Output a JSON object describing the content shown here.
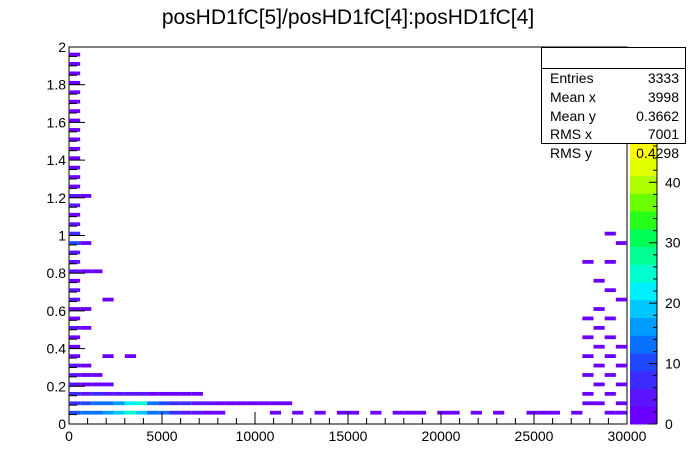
{
  "chart_data": {
    "type": "heatmap",
    "title": "posHD1fC[5]/posHD1fC[4]:posHD1fC[4]",
    "xlabel": "",
    "ylabel": "",
    "xlim": [
      0,
      30000
    ],
    "ylim": [
      0,
      2
    ],
    "x_ticks": [
      "0",
      "5000",
      "10000",
      "15000",
      "20000",
      "25000",
      "30000"
    ],
    "y_ticks": [
      "0",
      "0.2",
      "0.4",
      "0.6",
      "0.8",
      "1",
      "1.2",
      "1.4",
      "1.6",
      "1.8",
      "2"
    ],
    "z_ticks": [
      "0",
      "10",
      "20",
      "30",
      "40"
    ],
    "zlim": [
      0,
      47
    ],
    "bin_width_x": 600,
    "bin_width_y": 0.02,
    "stats": [
      {
        "label": "Entries",
        "value": "3333"
      },
      {
        "label": "Mean x",
        "value": "3998"
      },
      {
        "label": "Mean y",
        "value": "0.3662"
      },
      {
        "label": "RMS x",
        "value": "7001"
      },
      {
        "label": "RMS y",
        "value": "0.4298"
      }
    ],
    "palette": [
      "#6a00ff",
      "#5a14ff",
      "#3c2cff",
      "#1f48ff",
      "#0a70ff",
      "#009bff",
      "#00c8ff",
      "#00f0ff",
      "#00ffcf",
      "#00ff94",
      "#00ff55",
      "#25ff1a",
      "#6cff00",
      "#b0ff00",
      "#e4ff00",
      "#ffff00"
    ],
    "cells": [
      [
        0,
        1.95,
        1
      ],
      [
        0,
        1.9,
        1
      ],
      [
        0,
        1.85,
        1
      ],
      [
        0,
        1.8,
        2
      ],
      [
        0,
        1.75,
        1
      ],
      [
        0,
        1.7,
        1
      ],
      [
        0,
        1.65,
        2
      ],
      [
        0,
        1.6,
        1
      ],
      [
        0,
        1.55,
        1
      ],
      [
        0,
        1.5,
        2
      ],
      [
        0,
        1.45,
        1
      ],
      [
        0,
        1.4,
        2
      ],
      [
        0,
        1.35,
        1
      ],
      [
        0,
        1.3,
        1
      ],
      [
        0,
        1.25,
        2
      ],
      [
        0,
        1.2,
        3
      ],
      [
        0,
        1.15,
        4
      ],
      [
        0,
        1.1,
        2
      ],
      [
        0,
        1.05,
        3
      ],
      [
        0,
        1.0,
        6
      ],
      [
        0,
        0.95,
        9
      ],
      [
        0,
        0.9,
        5
      ],
      [
        0,
        0.85,
        3
      ],
      [
        0,
        0.8,
        4
      ],
      [
        0,
        0.75,
        2
      ],
      [
        0,
        0.7,
        3
      ],
      [
        0,
        0.65,
        5
      ],
      [
        0,
        0.6,
        2
      ],
      [
        0,
        0.55,
        1
      ],
      [
        0,
        0.5,
        3
      ],
      [
        0,
        0.45,
        2
      ],
      [
        0,
        0.4,
        2
      ],
      [
        0,
        0.35,
        1
      ],
      [
        0,
        0.3,
        3
      ],
      [
        0,
        0.25,
        4
      ],
      [
        0,
        0.2,
        3
      ],
      [
        0,
        0.15,
        6
      ],
      [
        0,
        0.1,
        8
      ],
      [
        0,
        0.05,
        10
      ],
      [
        600,
        1.2,
        1
      ],
      [
        600,
        0.95,
        1
      ],
      [
        600,
        0.8,
        1
      ],
      [
        600,
        0.6,
        1
      ],
      [
        600,
        0.5,
        1
      ],
      [
        600,
        0.3,
        1
      ],
      [
        600,
        0.25,
        2
      ],
      [
        600,
        0.2,
        2
      ],
      [
        600,
        0.15,
        5
      ],
      [
        600,
        0.1,
        9
      ],
      [
        600,
        0.05,
        12
      ],
      [
        1200,
        0.8,
        1
      ],
      [
        1200,
        0.25,
        1
      ],
      [
        1200,
        0.2,
        2
      ],
      [
        1200,
        0.15,
        6
      ],
      [
        1200,
        0.1,
        12
      ],
      [
        1200,
        0.05,
        14
      ],
      [
        1800,
        0.65,
        1
      ],
      [
        1800,
        0.35,
        1
      ],
      [
        1800,
        0.2,
        1
      ],
      [
        1800,
        0.15,
        4
      ],
      [
        1800,
        0.1,
        13
      ],
      [
        1800,
        0.05,
        16
      ],
      [
        2400,
        0.15,
        5
      ],
      [
        2400,
        0.1,
        15
      ],
      [
        2400,
        0.05,
        18
      ],
      [
        3000,
        0.35,
        1
      ],
      [
        3000,
        0.15,
        4
      ],
      [
        3000,
        0.1,
        22
      ],
      [
        3000,
        0.05,
        26
      ],
      [
        3600,
        0.15,
        3
      ],
      [
        3600,
        0.1,
        24
      ],
      [
        3600,
        0.05,
        20
      ],
      [
        4200,
        0.15,
        2
      ],
      [
        4200,
        0.1,
        14
      ],
      [
        4200,
        0.05,
        12
      ],
      [
        4800,
        0.15,
        2
      ],
      [
        4800,
        0.1,
        10
      ],
      [
        4800,
        0.05,
        13
      ],
      [
        5400,
        0.15,
        2
      ],
      [
        5400,
        0.1,
        8
      ],
      [
        5400,
        0.05,
        6
      ],
      [
        6000,
        0.15,
        1
      ],
      [
        6000,
        0.1,
        6
      ],
      [
        6000,
        0.05,
        5
      ],
      [
        6600,
        0.15,
        1
      ],
      [
        6600,
        0.1,
        4
      ],
      [
        6600,
        0.05,
        3
      ],
      [
        7200,
        0.1,
        3
      ],
      [
        7200,
        0.05,
        2
      ],
      [
        7800,
        0.1,
        2
      ],
      [
        7800,
        0.05,
        2
      ],
      [
        8400,
        0.1,
        2
      ],
      [
        9000,
        0.1,
        1
      ],
      [
        9600,
        0.1,
        1
      ],
      [
        10200,
        0.1,
        2
      ],
      [
        10800,
        0.1,
        1
      ],
      [
        11400,
        0.1,
        1
      ],
      [
        10800,
        0.05,
        1
      ],
      [
        12000,
        0.05,
        1
      ],
      [
        13200,
        0.05,
        1
      ],
      [
        14400,
        0.05,
        1
      ],
      [
        15000,
        0.05,
        1
      ],
      [
        16200,
        0.05,
        1
      ],
      [
        17400,
        0.05,
        1
      ],
      [
        18000,
        0.05,
        1
      ],
      [
        18600,
        0.05,
        1
      ],
      [
        19800,
        0.05,
        1
      ],
      [
        20400,
        0.05,
        1
      ],
      [
        21600,
        0.05,
        1
      ],
      [
        22800,
        0.05,
        1
      ],
      [
        24600,
        0.05,
        1
      ],
      [
        25200,
        0.05,
        1
      ],
      [
        25800,
        0.05,
        1
      ],
      [
        27000,
        0.05,
        1
      ],
      [
        27600,
        0.85,
        1
      ],
      [
        27600,
        0.55,
        1
      ],
      [
        27600,
        0.45,
        1
      ],
      [
        27600,
        0.35,
        1
      ],
      [
        27600,
        0.25,
        1
      ],
      [
        27600,
        0.15,
        1
      ],
      [
        27600,
        0.1,
        1
      ],
      [
        28200,
        0.75,
        1
      ],
      [
        28200,
        0.6,
        1
      ],
      [
        28200,
        0.5,
        1
      ],
      [
        28200,
        0.4,
        1
      ],
      [
        28200,
        0.3,
        1
      ],
      [
        28200,
        0.2,
        1
      ],
      [
        28200,
        0.1,
        1
      ],
      [
        28800,
        1.0,
        1
      ],
      [
        28800,
        0.85,
        1
      ],
      [
        28800,
        0.7,
        1
      ],
      [
        28800,
        0.55,
        1
      ],
      [
        28800,
        0.45,
        1
      ],
      [
        28800,
        0.35,
        1
      ],
      [
        28800,
        0.25,
        1
      ],
      [
        28800,
        0.15,
        1
      ],
      [
        28800,
        0.05,
        1
      ],
      [
        29400,
        0.95,
        1
      ],
      [
        29400,
        0.65,
        1
      ],
      [
        29400,
        0.4,
        1
      ],
      [
        29400,
        0.3,
        1
      ],
      [
        29400,
        0.2,
        1
      ],
      [
        29400,
        0.1,
        1
      ],
      [
        29400,
        0.05,
        1
      ]
    ]
  }
}
